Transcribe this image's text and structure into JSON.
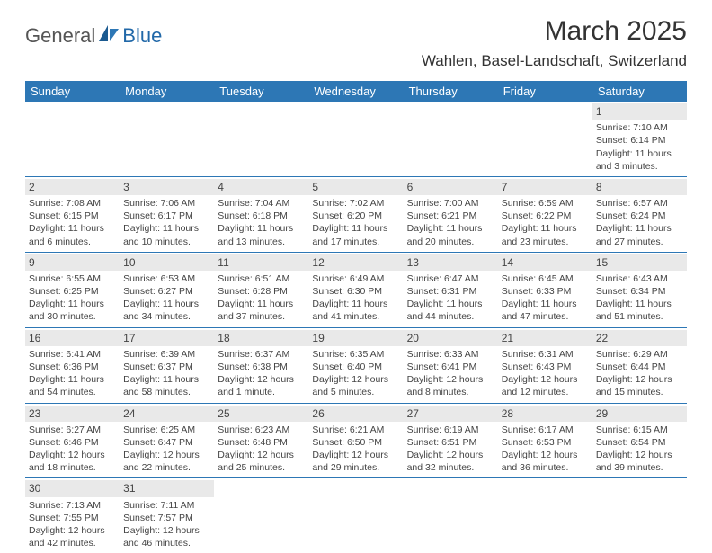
{
  "logo": {
    "text1": "General",
    "text2": "Blue"
  },
  "title": "March 2025",
  "location": "Wahlen, Basel-Landschaft, Switzerland",
  "day_headers": [
    "Sunday",
    "Monday",
    "Tuesday",
    "Wednesday",
    "Thursday",
    "Friday",
    "Saturday"
  ],
  "colors": {
    "header_bg": "#2d77b5",
    "header_text": "#ffffff",
    "daynum_bg": "#e9e9e9",
    "border": "#2d77b5",
    "text": "#444444",
    "logo_blue": "#2168a8"
  },
  "weeks": [
    [
      {
        "n": "",
        "lines": []
      },
      {
        "n": "",
        "lines": []
      },
      {
        "n": "",
        "lines": []
      },
      {
        "n": "",
        "lines": []
      },
      {
        "n": "",
        "lines": []
      },
      {
        "n": "",
        "lines": []
      },
      {
        "n": "1",
        "lines": [
          "Sunrise: 7:10 AM",
          "Sunset: 6:14 PM",
          "Daylight: 11 hours",
          "and 3 minutes."
        ]
      }
    ],
    [
      {
        "n": "2",
        "lines": [
          "Sunrise: 7:08 AM",
          "Sunset: 6:15 PM",
          "Daylight: 11 hours",
          "and 6 minutes."
        ]
      },
      {
        "n": "3",
        "lines": [
          "Sunrise: 7:06 AM",
          "Sunset: 6:17 PM",
          "Daylight: 11 hours",
          "and 10 minutes."
        ]
      },
      {
        "n": "4",
        "lines": [
          "Sunrise: 7:04 AM",
          "Sunset: 6:18 PM",
          "Daylight: 11 hours",
          "and 13 minutes."
        ]
      },
      {
        "n": "5",
        "lines": [
          "Sunrise: 7:02 AM",
          "Sunset: 6:20 PM",
          "Daylight: 11 hours",
          "and 17 minutes."
        ]
      },
      {
        "n": "6",
        "lines": [
          "Sunrise: 7:00 AM",
          "Sunset: 6:21 PM",
          "Daylight: 11 hours",
          "and 20 minutes."
        ]
      },
      {
        "n": "7",
        "lines": [
          "Sunrise: 6:59 AM",
          "Sunset: 6:22 PM",
          "Daylight: 11 hours",
          "and 23 minutes."
        ]
      },
      {
        "n": "8",
        "lines": [
          "Sunrise: 6:57 AM",
          "Sunset: 6:24 PM",
          "Daylight: 11 hours",
          "and 27 minutes."
        ]
      }
    ],
    [
      {
        "n": "9",
        "lines": [
          "Sunrise: 6:55 AM",
          "Sunset: 6:25 PM",
          "Daylight: 11 hours",
          "and 30 minutes."
        ]
      },
      {
        "n": "10",
        "lines": [
          "Sunrise: 6:53 AM",
          "Sunset: 6:27 PM",
          "Daylight: 11 hours",
          "and 34 minutes."
        ]
      },
      {
        "n": "11",
        "lines": [
          "Sunrise: 6:51 AM",
          "Sunset: 6:28 PM",
          "Daylight: 11 hours",
          "and 37 minutes."
        ]
      },
      {
        "n": "12",
        "lines": [
          "Sunrise: 6:49 AM",
          "Sunset: 6:30 PM",
          "Daylight: 11 hours",
          "and 41 minutes."
        ]
      },
      {
        "n": "13",
        "lines": [
          "Sunrise: 6:47 AM",
          "Sunset: 6:31 PM",
          "Daylight: 11 hours",
          "and 44 minutes."
        ]
      },
      {
        "n": "14",
        "lines": [
          "Sunrise: 6:45 AM",
          "Sunset: 6:33 PM",
          "Daylight: 11 hours",
          "and 47 minutes."
        ]
      },
      {
        "n": "15",
        "lines": [
          "Sunrise: 6:43 AM",
          "Sunset: 6:34 PM",
          "Daylight: 11 hours",
          "and 51 minutes."
        ]
      }
    ],
    [
      {
        "n": "16",
        "lines": [
          "Sunrise: 6:41 AM",
          "Sunset: 6:36 PM",
          "Daylight: 11 hours",
          "and 54 minutes."
        ]
      },
      {
        "n": "17",
        "lines": [
          "Sunrise: 6:39 AM",
          "Sunset: 6:37 PM",
          "Daylight: 11 hours",
          "and 58 minutes."
        ]
      },
      {
        "n": "18",
        "lines": [
          "Sunrise: 6:37 AM",
          "Sunset: 6:38 PM",
          "Daylight: 12 hours",
          "and 1 minute."
        ]
      },
      {
        "n": "19",
        "lines": [
          "Sunrise: 6:35 AM",
          "Sunset: 6:40 PM",
          "Daylight: 12 hours",
          "and 5 minutes."
        ]
      },
      {
        "n": "20",
        "lines": [
          "Sunrise: 6:33 AM",
          "Sunset: 6:41 PM",
          "Daylight: 12 hours",
          "and 8 minutes."
        ]
      },
      {
        "n": "21",
        "lines": [
          "Sunrise: 6:31 AM",
          "Sunset: 6:43 PM",
          "Daylight: 12 hours",
          "and 12 minutes."
        ]
      },
      {
        "n": "22",
        "lines": [
          "Sunrise: 6:29 AM",
          "Sunset: 6:44 PM",
          "Daylight: 12 hours",
          "and 15 minutes."
        ]
      }
    ],
    [
      {
        "n": "23",
        "lines": [
          "Sunrise: 6:27 AM",
          "Sunset: 6:46 PM",
          "Daylight: 12 hours",
          "and 18 minutes."
        ]
      },
      {
        "n": "24",
        "lines": [
          "Sunrise: 6:25 AM",
          "Sunset: 6:47 PM",
          "Daylight: 12 hours",
          "and 22 minutes."
        ]
      },
      {
        "n": "25",
        "lines": [
          "Sunrise: 6:23 AM",
          "Sunset: 6:48 PM",
          "Daylight: 12 hours",
          "and 25 minutes."
        ]
      },
      {
        "n": "26",
        "lines": [
          "Sunrise: 6:21 AM",
          "Sunset: 6:50 PM",
          "Daylight: 12 hours",
          "and 29 minutes."
        ]
      },
      {
        "n": "27",
        "lines": [
          "Sunrise: 6:19 AM",
          "Sunset: 6:51 PM",
          "Daylight: 12 hours",
          "and 32 minutes."
        ]
      },
      {
        "n": "28",
        "lines": [
          "Sunrise: 6:17 AM",
          "Sunset: 6:53 PM",
          "Daylight: 12 hours",
          "and 36 minutes."
        ]
      },
      {
        "n": "29",
        "lines": [
          "Sunrise: 6:15 AM",
          "Sunset: 6:54 PM",
          "Daylight: 12 hours",
          "and 39 minutes."
        ]
      }
    ],
    [
      {
        "n": "30",
        "lines": [
          "Sunrise: 7:13 AM",
          "Sunset: 7:55 PM",
          "Daylight: 12 hours",
          "and 42 minutes."
        ]
      },
      {
        "n": "31",
        "lines": [
          "Sunrise: 7:11 AM",
          "Sunset: 7:57 PM",
          "Daylight: 12 hours",
          "and 46 minutes."
        ]
      },
      {
        "n": "",
        "lines": []
      },
      {
        "n": "",
        "lines": []
      },
      {
        "n": "",
        "lines": []
      },
      {
        "n": "",
        "lines": []
      },
      {
        "n": "",
        "lines": []
      }
    ]
  ]
}
